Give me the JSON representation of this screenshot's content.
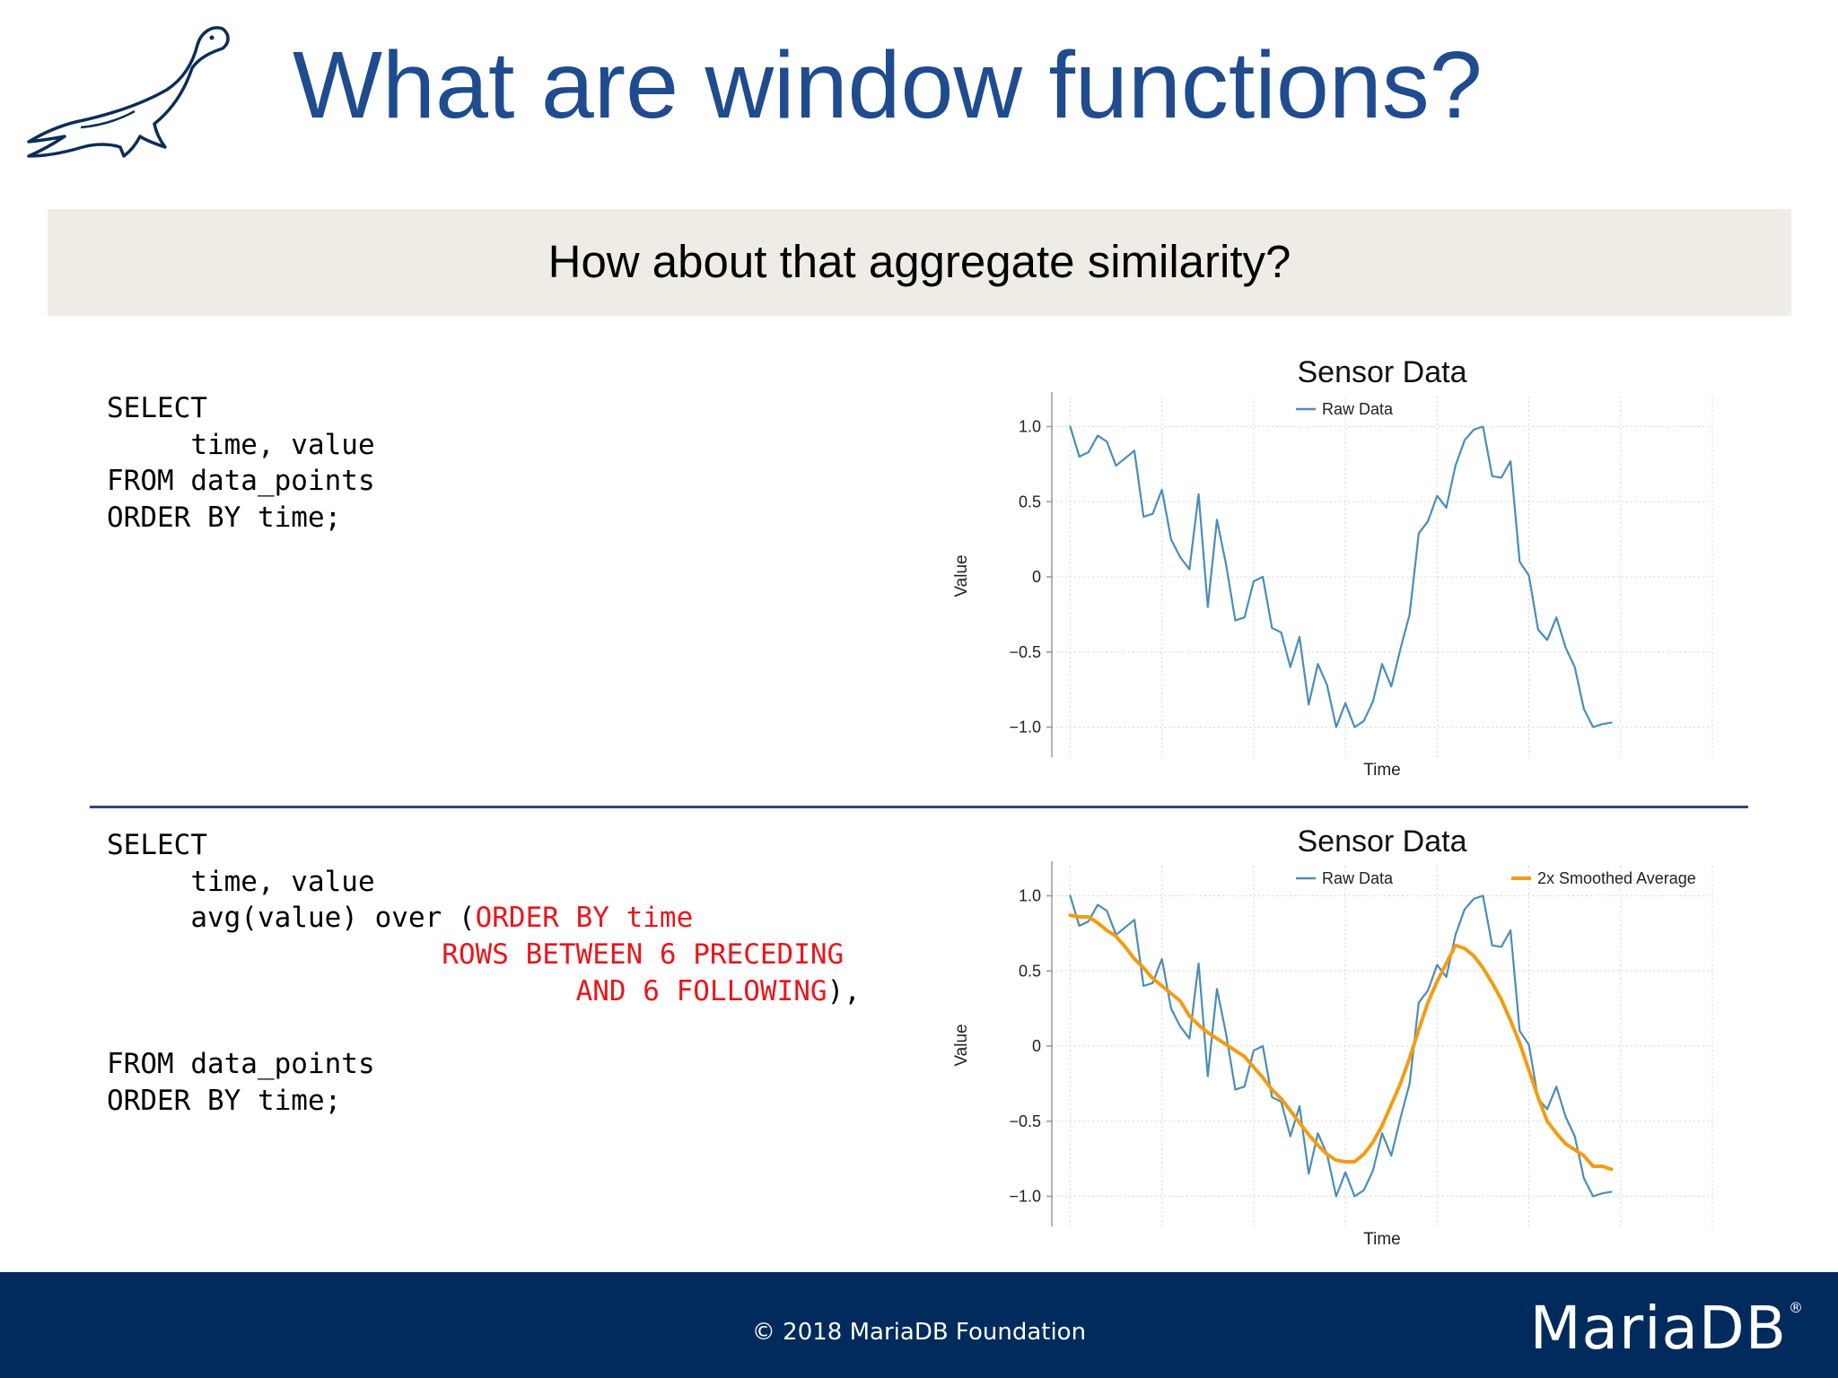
{
  "title": "What are window functions?",
  "banner": "How about that aggregate similarity?",
  "code1": {
    "lines": [
      "SELECT",
      "     time, value",
      "FROM data_points",
      "ORDER BY time;"
    ]
  },
  "code2": {
    "l1": "SELECT",
    "l2": "     time, value",
    "l3a": "     avg(value) over (",
    "l3b": "ORDER BY time",
    "l4a": "                    ",
    "l4b": "ROWS BETWEEN 6 PRECEDING",
    "l5a": "                            ",
    "l5b": "AND 6 FOLLOWING",
    "l5c": "),",
    "l6": "FROM data_points",
    "l7": "ORDER BY time;"
  },
  "colors": {
    "title": "#1f4b8f",
    "raw": "#4a8db9",
    "smoothed": "#f39c12",
    "highlight": "#e8171d",
    "footer": "#002b5c",
    "banner": "#efece5"
  },
  "footer": {
    "copyright": "© 2018 MariaDB Foundation",
    "brand": "MariaDB",
    "reg": "®"
  },
  "chart_data": [
    {
      "type": "line",
      "title": "Sensor Data",
      "xlabel": "Time",
      "ylabel": "Value",
      "ylim": [
        -1.2,
        1.2
      ],
      "yticks": [
        "1.0",
        "0.5",
        "0",
        "−0.5",
        "−1.0"
      ],
      "ytick_values": [
        1.0,
        0.5,
        0,
        -0.5,
        -1.0
      ],
      "grid": true,
      "legend": "top",
      "x": [
        0,
        1,
        2,
        3,
        4,
        5,
        6,
        7,
        8,
        9,
        10,
        11,
        12,
        13,
        14,
        15,
        16,
        17,
        18,
        19,
        20,
        21,
        22,
        23,
        24,
        25,
        26,
        27,
        28,
        29,
        30,
        31,
        32,
        33,
        34,
        35,
        36,
        37,
        38,
        39,
        40,
        41,
        42,
        43,
        44,
        45,
        46,
        47,
        48,
        49,
        50,
        51,
        52,
        53,
        54,
        55,
        56,
        57,
        58,
        59
      ],
      "series": [
        {
          "name": "Raw Data",
          "values": [
            1.0,
            0.8,
            0.83,
            0.94,
            0.9,
            0.74,
            0.79,
            0.84,
            0.4,
            0.42,
            0.58,
            0.25,
            0.13,
            0.05,
            0.55,
            -0.2,
            0.38,
            0.08,
            -0.29,
            -0.27,
            -0.03,
            0.0,
            -0.34,
            -0.37,
            -0.6,
            -0.4,
            -0.85,
            -0.58,
            -0.72,
            -1.0,
            -0.84,
            -1.0,
            -0.96,
            -0.83,
            -0.58,
            -0.73,
            -0.48,
            -0.25,
            0.29,
            0.37,
            0.54,
            0.46,
            0.74,
            0.91,
            0.98,
            1.0,
            0.67,
            0.66,
            0.77,
            0.1,
            0.01,
            -0.35,
            -0.42,
            -0.27,
            -0.47,
            -0.6,
            -0.88,
            -1.0,
            -0.98,
            -0.97
          ]
        }
      ]
    },
    {
      "type": "line",
      "title": "Sensor Data",
      "xlabel": "Time",
      "ylabel": "Value",
      "ylim": [
        -1.2,
        1.2
      ],
      "yticks": [
        "1.0",
        "0.5",
        "0",
        "−0.5",
        "−1.0"
      ],
      "ytick_values": [
        1.0,
        0.5,
        0,
        -0.5,
        -1.0
      ],
      "grid": true,
      "legend": "top",
      "x": [
        0,
        1,
        2,
        3,
        4,
        5,
        6,
        7,
        8,
        9,
        10,
        11,
        12,
        13,
        14,
        15,
        16,
        17,
        18,
        19,
        20,
        21,
        22,
        23,
        24,
        25,
        26,
        27,
        28,
        29,
        30,
        31,
        32,
        33,
        34,
        35,
        36,
        37,
        38,
        39,
        40,
        41,
        42,
        43,
        44,
        45,
        46,
        47,
        48,
        49,
        50,
        51,
        52,
        53,
        54,
        55,
        56,
        57,
        58,
        59
      ],
      "series": [
        {
          "name": "Raw Data",
          "values": [
            1.0,
            0.8,
            0.83,
            0.94,
            0.9,
            0.74,
            0.79,
            0.84,
            0.4,
            0.42,
            0.58,
            0.25,
            0.13,
            0.05,
            0.55,
            -0.2,
            0.38,
            0.08,
            -0.29,
            -0.27,
            -0.03,
            0.0,
            -0.34,
            -0.37,
            -0.6,
            -0.4,
            -0.85,
            -0.58,
            -0.72,
            -1.0,
            -0.84,
            -1.0,
            -0.96,
            -0.83,
            -0.58,
            -0.73,
            -0.48,
            -0.25,
            0.29,
            0.37,
            0.54,
            0.46,
            0.74,
            0.91,
            0.98,
            1.0,
            0.67,
            0.66,
            0.77,
            0.1,
            0.01,
            -0.35,
            -0.42,
            -0.27,
            -0.47,
            -0.6,
            -0.88,
            -1.0,
            -0.98,
            -0.97
          ]
        },
        {
          "name": "2x Smoothed Average",
          "values": [
            0.87,
            0.86,
            0.86,
            0.82,
            0.77,
            0.73,
            0.66,
            0.58,
            0.52,
            0.45,
            0.4,
            0.35,
            0.3,
            0.2,
            0.14,
            0.09,
            0.05,
            0.01,
            -0.03,
            -0.07,
            -0.14,
            -0.21,
            -0.29,
            -0.35,
            -0.43,
            -0.51,
            -0.59,
            -0.66,
            -0.72,
            -0.76,
            -0.77,
            -0.77,
            -0.72,
            -0.64,
            -0.53,
            -0.39,
            -0.25,
            -0.08,
            0.11,
            0.29,
            0.43,
            0.55,
            0.67,
            0.65,
            0.6,
            0.52,
            0.42,
            0.31,
            0.17,
            0.02,
            -0.16,
            -0.34,
            -0.5,
            -0.58,
            -0.65,
            -0.69,
            -0.73,
            -0.8,
            -0.8,
            -0.82
          ]
        }
      ]
    }
  ]
}
